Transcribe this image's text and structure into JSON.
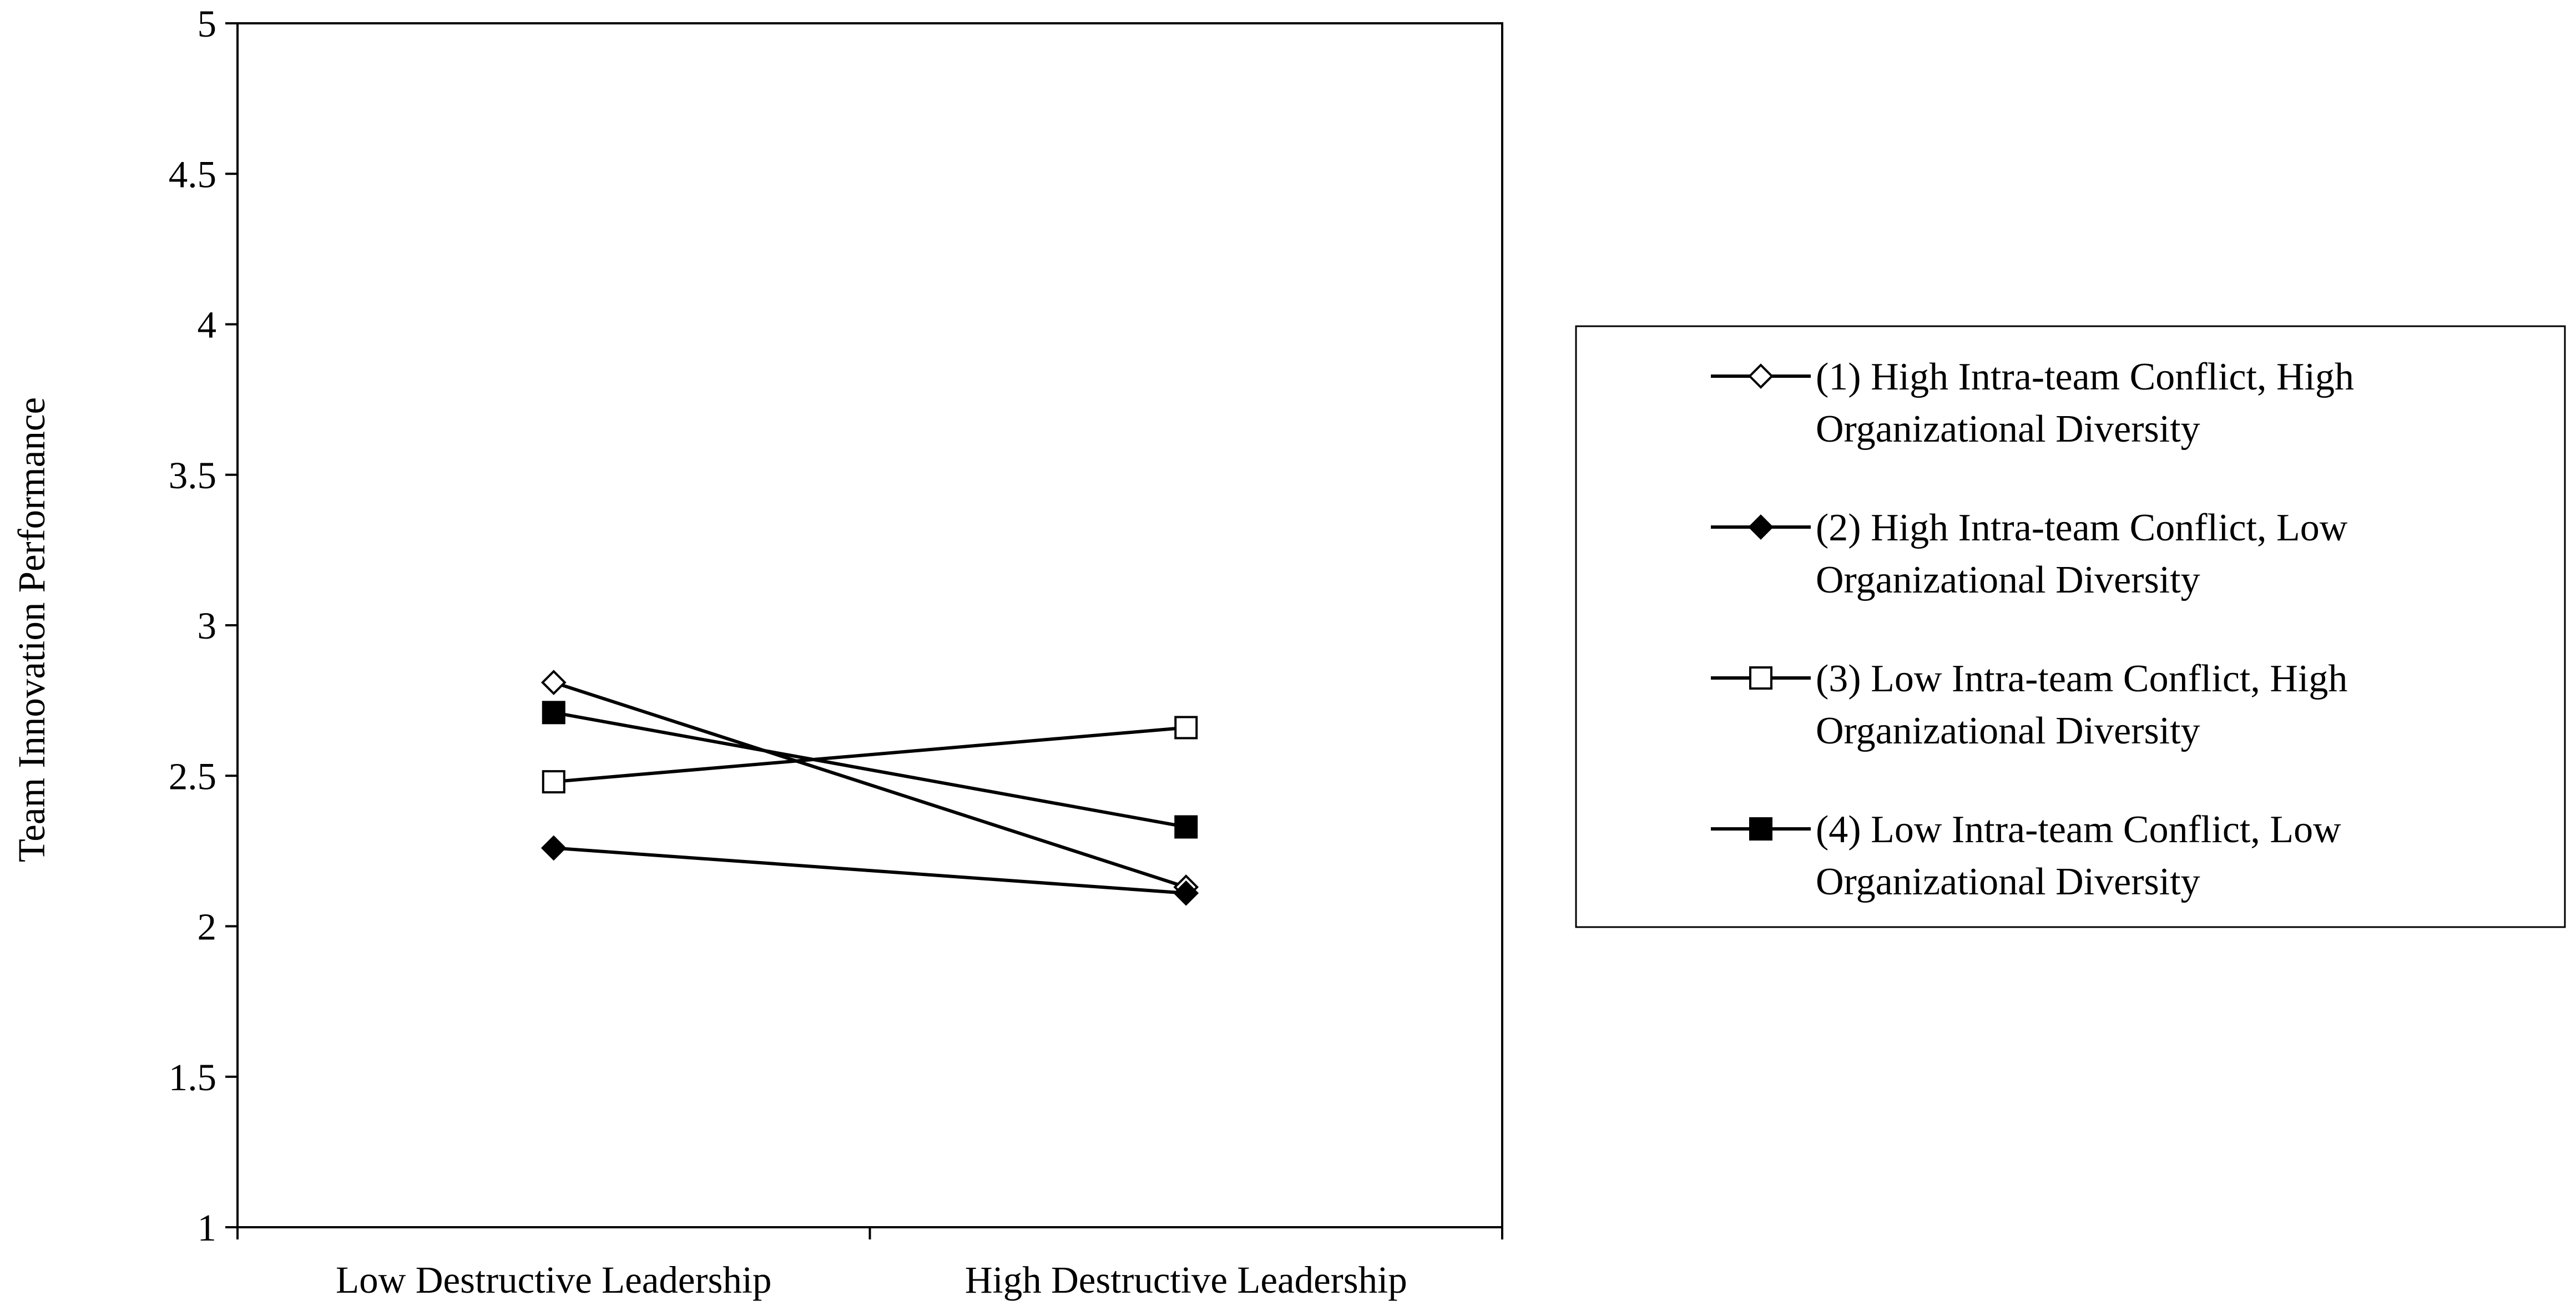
{
  "chart_data": {
    "type": "line",
    "title": "",
    "xlabel": "",
    "ylabel": "Team Innovation Performance",
    "categories": [
      "Low Destructive Leadership",
      "High Destructive Leadership"
    ],
    "ylim": [
      1,
      5
    ],
    "yticks": [
      "1",
      "1.5",
      "2",
      "2.5",
      "3",
      "3.5",
      "4",
      "4.5",
      "5"
    ],
    "grid": false,
    "legend_position": "right",
    "series": [
      {
        "name_lines": [
          "(1) High Intra-team Conflict, High",
          "Organizational Diversity"
        ],
        "values": [
          2.81,
          2.13
        ],
        "marker": "diamond",
        "filled": false
      },
      {
        "name_lines": [
          "(2) High Intra-team Conflict, Low",
          "Organizational Diversity"
        ],
        "values": [
          2.26,
          2.11
        ],
        "marker": "diamond",
        "filled": true
      },
      {
        "name_lines": [
          "(3) Low Intra-team Conflict, High",
          "Organizational Diversity"
        ],
        "values": [
          2.48,
          2.66
        ],
        "marker": "square",
        "filled": false
      },
      {
        "name_lines": [
          "(4) Low Intra-team Conflict, Low",
          "Organizational Diversity"
        ],
        "values": [
          2.71,
          2.33
        ],
        "marker": "square",
        "filled": true
      }
    ],
    "colors": {
      "line": "#000000",
      "marker_fill_open": "#ffffff",
      "marker_fill_solid": "#000000"
    }
  }
}
